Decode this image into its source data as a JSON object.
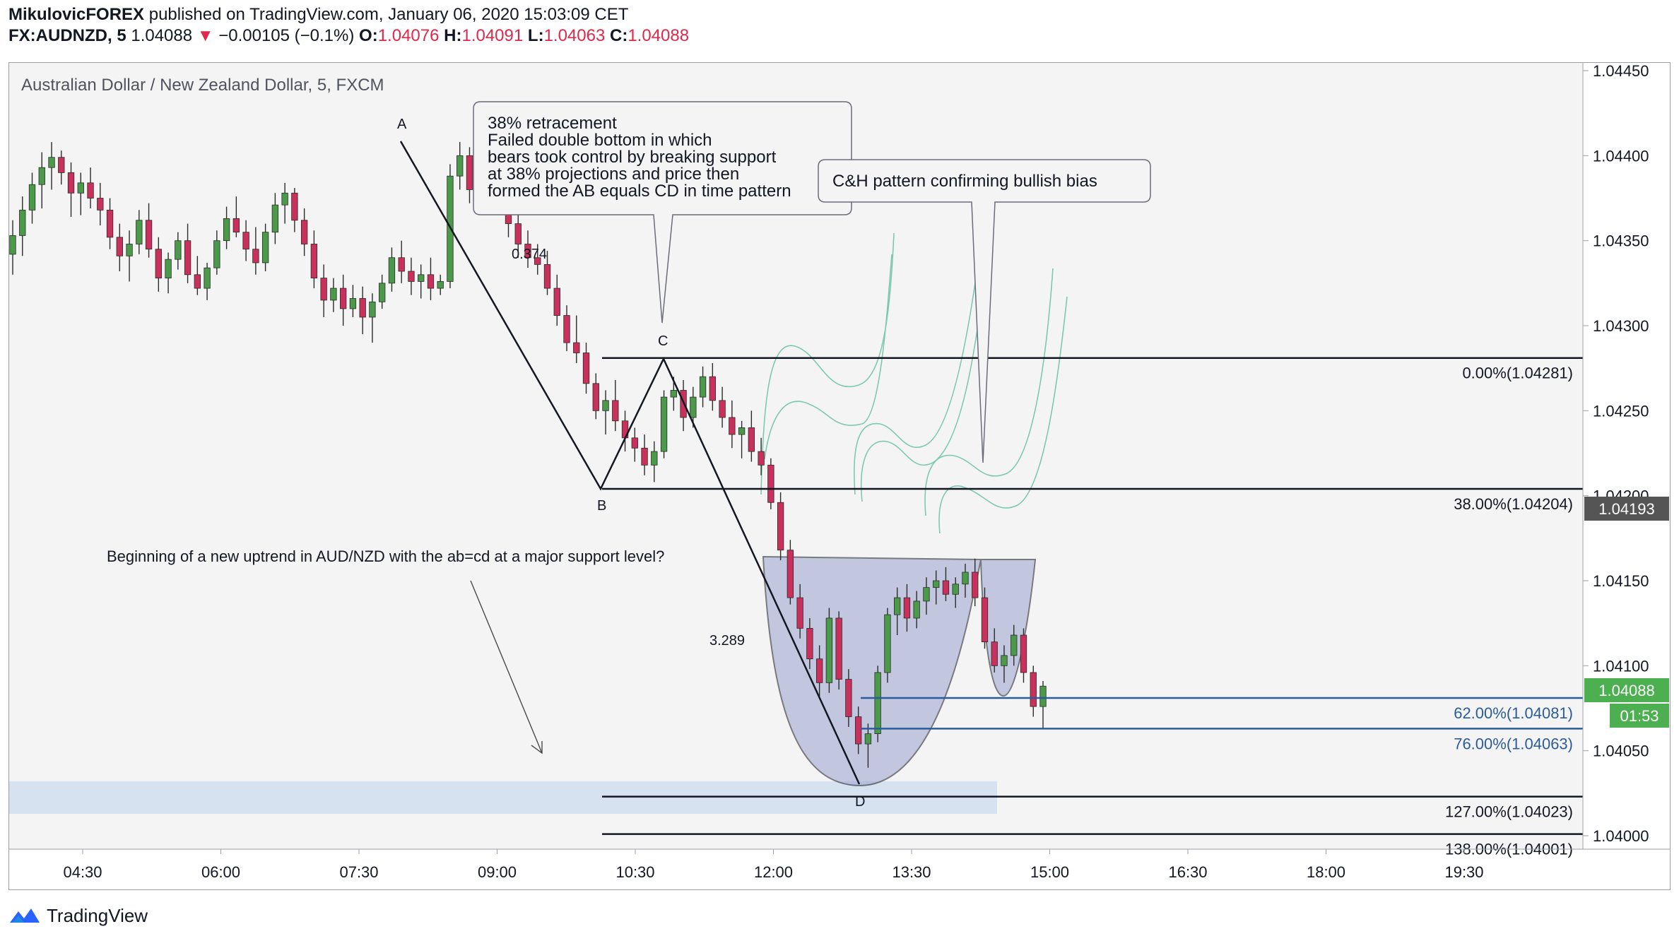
{
  "header": {
    "author": "MikulovicFOREX",
    "published_text": "published on TradingView.com, January 06, 2020 15:03:09 CET",
    "symbol": "FX:AUDNZD, 5",
    "last": "1.04088",
    "change_arrow": "▼",
    "change": "−0.00105 (−0.1%)",
    "o_label": "O:",
    "o_value": "1.04076",
    "h_label": "H:",
    "h_value": "1.04091",
    "l_label": "L:",
    "l_value": "1.04063",
    "c_label": "C:",
    "c_value": "1.04088"
  },
  "chart_title": "Australian Dollar / New Zealand Dollar, 5, FXCM",
  "footer": {
    "logo_text": "TradingView"
  },
  "colors": {
    "up": "#4a9a4a",
    "down": "#c9305b",
    "teal": "#7ec8b0",
    "fib_black": "#131722",
    "fib_blue": "#2a5c9c",
    "cup_fill": "#9aa4cf",
    "zone_fill": "#c9daee",
    "price_label_bg": "#4caf50",
    "current_label_bg": "#555555"
  },
  "annotations": {
    "point_a": "A",
    "point_b": "B",
    "point_c": "C",
    "point_d": "D",
    "ratio_bc": "0.374",
    "ratio_cd": "3.289",
    "callout1": [
      "38% retracement",
      "Failed double bottom in which",
      "bears took control by breaking support",
      "at 38% projections and price then",
      "formed the AB equals CD in time pattern"
    ],
    "callout2": "C&H pattern confirming bullish bias",
    "note": "Beginning of a new uptrend in AUD/NZD with the ab=cd at a major support level?"
  },
  "fib_levels": [
    {
      "label": "0.00%(1.04281)",
      "price": 1.04281,
      "color": "black"
    },
    {
      "label": "38.00%(1.04204)",
      "price": 1.04204,
      "color": "black"
    },
    {
      "label": "62.00%(1.04081)",
      "price": 1.04081,
      "color": "blue"
    },
    {
      "label": "76.00%(1.04063)",
      "price": 1.04063,
      "color": "blue"
    },
    {
      "label": "127.00%(1.04023)",
      "price": 1.04023,
      "color": "black"
    },
    {
      "label": "138.00%(1.04001)",
      "price": 1.04001,
      "color": "black"
    }
  ],
  "price_tags": {
    "current_level": "1.04193",
    "last_price": "1.04088",
    "countdown": "01:53"
  },
  "chart_data": {
    "type": "candlestick",
    "title": "Australian Dollar / New Zealand Dollar, 5, FXCM",
    "y_range": [
      1.03988,
      1.04458
    ],
    "y_ticks": [
      "1.04450",
      "1.04400",
      "1.04350",
      "1.04300",
      "1.04250",
      "1.04200",
      "1.04150",
      "1.04100",
      "1.04050",
      "1.04000"
    ],
    "x_ticks": [
      "04:30",
      "06:00",
      "07:30",
      "09:00",
      "10:30",
      "12:00",
      "13:30",
      "15:00",
      "16:30",
      "18:00",
      "19:30"
    ],
    "grid": false,
    "pattern_points": [
      {
        "label": "A",
        "time": "07:55",
        "price": 1.04408
      },
      {
        "label": "B",
        "time": "10:15",
        "price": 1.04205
      },
      {
        "label": "C",
        "time": "10:50",
        "price": 1.04282
      },
      {
        "label": "D",
        "time": "13:00",
        "price": 1.04031
      }
    ],
    "candles_ohlc": [
      [
        1.04342,
        1.04362,
        1.0433,
        1.04353
      ],
      [
        1.04353,
        1.04376,
        1.04341,
        1.04368
      ],
      [
        1.04368,
        1.0439,
        1.0436,
        1.04383
      ],
      [
        1.04383,
        1.04402,
        1.04369,
        1.04393
      ],
      [
        1.04393,
        1.04408,
        1.0438,
        1.04399
      ],
      [
        1.04399,
        1.04403,
        1.04383,
        1.0439
      ],
      [
        1.0439,
        1.04396,
        1.04364,
        1.04378
      ],
      [
        1.04378,
        1.0439,
        1.04365,
        1.04384
      ],
      [
        1.04384,
        1.04393,
        1.04369,
        1.04375
      ],
      [
        1.04375,
        1.04384,
        1.04359,
        1.04368
      ],
      [
        1.04368,
        1.04375,
        1.04345,
        1.04352
      ],
      [
        1.04352,
        1.0436,
        1.04332,
        1.04341
      ],
      [
        1.04341,
        1.04356,
        1.04326,
        1.04348
      ],
      [
        1.04348,
        1.04368,
        1.04342,
        1.04362
      ],
      [
        1.04362,
        1.04372,
        1.0434,
        1.04345
      ],
      [
        1.04345,
        1.04352,
        1.0432,
        1.04328
      ],
      [
        1.04328,
        1.04343,
        1.04319,
        1.04339
      ],
      [
        1.04339,
        1.04355,
        1.04333,
        1.0435
      ],
      [
        1.0435,
        1.0436,
        1.04325,
        1.0433
      ],
      [
        1.0433,
        1.04341,
        1.04318,
        1.04322
      ],
      [
        1.04322,
        1.04337,
        1.04315,
        1.04334
      ],
      [
        1.04334,
        1.04356,
        1.0433,
        1.0435
      ],
      [
        1.0435,
        1.0437,
        1.04345,
        1.04363
      ],
      [
        1.04363,
        1.04376,
        1.04352,
        1.04355
      ],
      [
        1.04355,
        1.04362,
        1.04338,
        1.04345
      ],
      [
        1.04345,
        1.04358,
        1.0433,
        1.04337
      ],
      [
        1.04337,
        1.0436,
        1.04332,
        1.04355
      ],
      [
        1.04355,
        1.04378,
        1.04348,
        1.04371
      ],
      [
        1.04371,
        1.04384,
        1.0436,
        1.04378
      ],
      [
        1.04378,
        1.04381,
        1.04355,
        1.04362
      ],
      [
        1.04362,
        1.04369,
        1.04341,
        1.04348
      ],
      [
        1.04348,
        1.04356,
        1.04322,
        1.04328
      ],
      [
        1.04328,
        1.04336,
        1.04305,
        1.04315
      ],
      [
        1.04315,
        1.04328,
        1.04308,
        1.04322
      ],
      [
        1.04322,
        1.0433,
        1.043,
        1.0431
      ],
      [
        1.0431,
        1.04324,
        1.04305,
        1.04316
      ],
      [
        1.04316,
        1.04323,
        1.04295,
        1.04305
      ],
      [
        1.04305,
        1.04319,
        1.0429,
        1.04314
      ],
      [
        1.04314,
        1.0433,
        1.0431,
        1.04325
      ],
      [
        1.04325,
        1.04346,
        1.0432,
        1.0434
      ],
      [
        1.0434,
        1.0435,
        1.04325,
        1.04332
      ],
      [
        1.04332,
        1.0434,
        1.04318,
        1.04326
      ],
      [
        1.04326,
        1.04336,
        1.04316,
        1.0433
      ],
      [
        1.0433,
        1.0434,
        1.04315,
        1.04322
      ],
      [
        1.04322,
        1.0433,
        1.04318,
        1.04326
      ],
      [
        1.04326,
        1.04395,
        1.04322,
        1.04388
      ],
      [
        1.04388,
        1.04408,
        1.0438,
        1.044
      ],
      [
        1.044,
        1.04405,
        1.04372,
        1.0438
      ],
      [
        1.0438,
        1.04394,
        1.04366,
        1.04388
      ],
      [
        1.04388,
        1.04398,
        1.04368,
        1.04374
      ],
      [
        1.04374,
        1.04392,
        1.04368,
        1.04386
      ],
      [
        1.04386,
        1.0439,
        1.04352,
        1.0436
      ],
      [
        1.0436,
        1.04368,
        1.0434,
        1.04348
      ],
      [
        1.04348,
        1.04356,
        1.04334,
        1.0434
      ],
      [
        1.0434,
        1.04348,
        1.0433,
        1.04336
      ],
      [
        1.04336,
        1.04344,
        1.04318,
        1.04322
      ],
      [
        1.04322,
        1.0433,
        1.043,
        1.04306
      ],
      [
        1.04306,
        1.04312,
        1.04285,
        1.0429
      ],
      [
        1.0429,
        1.04306,
        1.04278,
        1.04284
      ],
      [
        1.04284,
        1.0429,
        1.0426,
        1.04266
      ],
      [
        1.04266,
        1.04272,
        1.04245,
        1.0425
      ],
      [
        1.0425,
        1.04262,
        1.04236,
        1.04256
      ],
      [
        1.04256,
        1.04268,
        1.04238,
        1.04244
      ],
      [
        1.04244,
        1.0425,
        1.04226,
        1.04234
      ],
      [
        1.04234,
        1.0424,
        1.0422,
        1.04228
      ],
      [
        1.04228,
        1.04236,
        1.04212,
        1.04218
      ],
      [
        1.04218,
        1.04232,
        1.04208,
        1.04226
      ],
      [
        1.04226,
        1.04262,
        1.04222,
        1.04258
      ],
      [
        1.04258,
        1.0427,
        1.0425,
        1.04262
      ],
      [
        1.04262,
        1.04268,
        1.04238,
        1.04246
      ],
      [
        1.04246,
        1.04264,
        1.0424,
        1.04258
      ],
      [
        1.04258,
        1.04276,
        1.04252,
        1.0427
      ],
      [
        1.0427,
        1.04278,
        1.0425,
        1.04256
      ],
      [
        1.04256,
        1.04264,
        1.0424,
        1.04246
      ],
      [
        1.04246,
        1.04256,
        1.04228,
        1.04236
      ],
      [
        1.04236,
        1.04244,
        1.04222,
        1.0424
      ],
      [
        1.0424,
        1.0425,
        1.0422,
        1.04226
      ],
      [
        1.04226,
        1.04234,
        1.04212,
        1.04218
      ],
      [
        1.04218,
        1.04222,
        1.04192,
        1.04196
      ],
      [
        1.04196,
        1.04202,
        1.04162,
        1.04168
      ],
      [
        1.04168,
        1.04174,
        1.04136,
        1.0414
      ],
      [
        1.0414,
        1.04148,
        1.04116,
        1.04122
      ],
      [
        1.04122,
        1.04128,
        1.04098,
        1.04104
      ],
      [
        1.04104,
        1.04112,
        1.04082,
        1.0409
      ],
      [
        1.0409,
        1.04134,
        1.04084,
        1.04128
      ],
      [
        1.04128,
        1.04132,
        1.04086,
        1.04092
      ],
      [
        1.04092,
        1.04098,
        1.04064,
        1.0407
      ],
      [
        1.0407,
        1.04076,
        1.04048,
        1.04054
      ],
      [
        1.04054,
        1.04066,
        1.0404,
        1.0406
      ],
      [
        1.0406,
        1.041,
        1.04055,
        1.04096
      ],
      [
        1.04096,
        1.04134,
        1.0409,
        1.0413
      ],
      [
        1.0413,
        1.04146,
        1.04118,
        1.0414
      ],
      [
        1.0414,
        1.04148,
        1.0412,
        1.04128
      ],
      [
        1.04128,
        1.04144,
        1.04122,
        1.04138
      ],
      [
        1.04138,
        1.04152,
        1.0413,
        1.04146
      ],
      [
        1.04146,
        1.04156,
        1.04136,
        1.0415
      ],
      [
        1.0415,
        1.04158,
        1.04138,
        1.04142
      ],
      [
        1.04142,
        1.04152,
        1.04134,
        1.04148
      ],
      [
        1.04148,
        1.0416,
        1.0414,
        1.04155
      ],
      [
        1.04155,
        1.04163,
        1.04135,
        1.0414
      ],
      [
        1.0414,
        1.04146,
        1.0411,
        1.04114
      ],
      [
        1.04114,
        1.04122,
        1.04096,
        1.041
      ],
      [
        1.041,
        1.04112,
        1.0409,
        1.04106
      ],
      [
        1.04106,
        1.04124,
        1.041,
        1.04118
      ],
      [
        1.04118,
        1.04122,
        1.0409,
        1.04096
      ],
      [
        1.04096,
        1.041,
        1.0407,
        1.04076
      ],
      [
        1.04076,
        1.04091,
        1.04063,
        1.04088
      ]
    ]
  }
}
